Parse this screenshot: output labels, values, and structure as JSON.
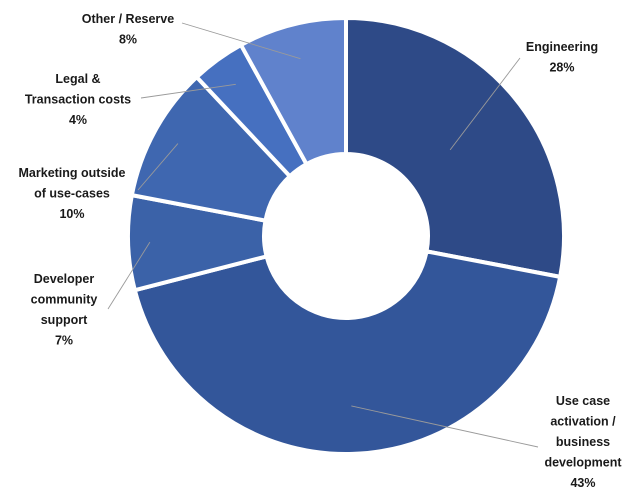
{
  "chart_data": {
    "type": "pie",
    "variant": "donut",
    "title": "",
    "legend": "none",
    "categories": [
      "Engineering",
      "Use case activation / business development",
      "Developer community support",
      "Marketing outside of use-cases",
      "Legal & Transaction costs",
      "Other / Reserve"
    ],
    "values": [
      28,
      43,
      7,
      10,
      4,
      8
    ],
    "value_labels": [
      "28%",
      "43%",
      "7%",
      "10%",
      "4%",
      "8%"
    ],
    "label_lines": [
      [
        "Engineering"
      ],
      [
        "Use case",
        "activation /",
        "business",
        "development"
      ],
      [
        "Developer",
        "community",
        "support"
      ],
      [
        "Marketing outside",
        "of use-cases"
      ],
      [
        "Legal &",
        "Transaction costs"
      ],
      [
        "Other / Reserve"
      ]
    ],
    "colors": [
      "#2e4a87",
      "#33569a",
      "#3b62a8",
      "#3f67b0",
      "#4670c0",
      "#6082cc"
    ]
  }
}
